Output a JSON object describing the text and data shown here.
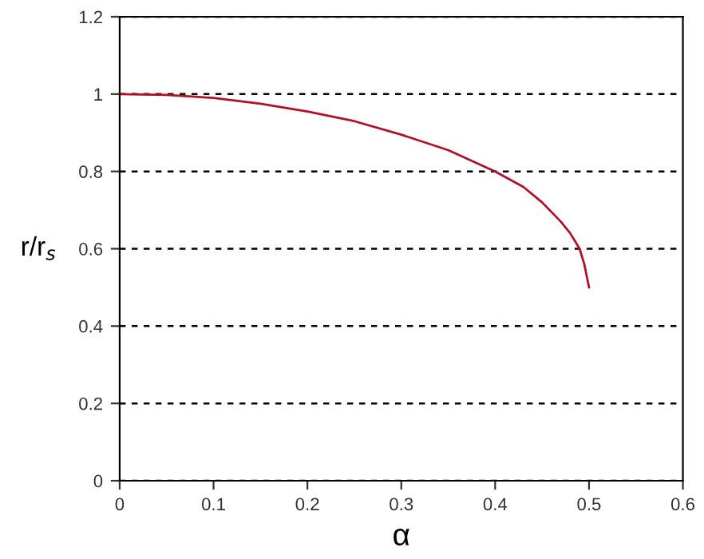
{
  "chart_data": {
    "type": "line",
    "xlabel": "α",
    "ylabel": "r/r$_{s}$",
    "x": [
      0,
      0.05,
      0.1,
      0.15,
      0.2,
      0.25,
      0.3,
      0.35,
      0.4,
      0.43,
      0.45,
      0.47,
      0.48,
      0.49,
      0.495,
      0.5
    ],
    "series": [
      {
        "color": "#b0102a",
        "values": [
          1.0,
          0.998,
          0.99,
          0.975,
          0.955,
          0.93,
          0.895,
          0.855,
          0.8,
          0.76,
          0.72,
          0.67,
          0.64,
          0.6,
          0.56,
          0.5
        ]
      }
    ],
    "xlim": [
      0,
      0.6
    ],
    "xticks": [
      0,
      0.1,
      0.2,
      0.3,
      0.4,
      0.5,
      0.6
    ],
    "ylim": [
      0,
      1.2
    ],
    "yticks": [
      0,
      0.2,
      0.4,
      0.6,
      0.8,
      1,
      1.2
    ],
    "grid": "y",
    "marker": "none",
    "line_style": "solid",
    "legend": false
  }
}
